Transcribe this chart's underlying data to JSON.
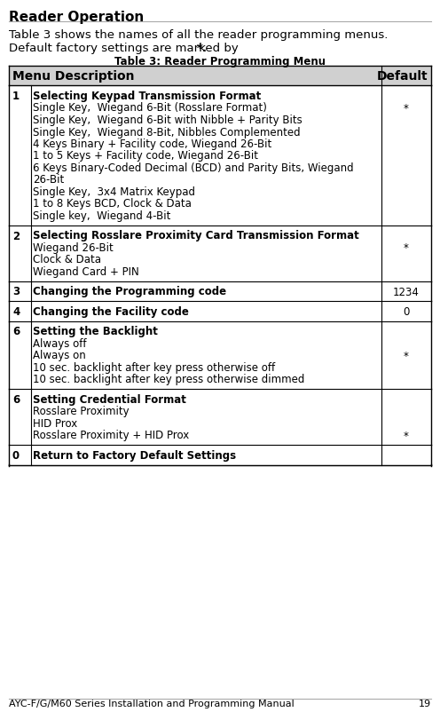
{
  "title": "Reader Operation",
  "subtitle_line1": "Table 3 shows the names of all the reader programming menus.",
  "subtitle_line2": "Default factory settings are marked by *.",
  "table_title": "Table 3: Reader Programming Menu",
  "header": [
    "Menu Description",
    "Default"
  ],
  "rows": [
    {
      "menu": "1",
      "description": "Selecting Keypad Transmission Format",
      "sub_items": [
        "Single Key,  Wiegand 6-Bit (Rosslare Format)",
        "Single Key,  Wiegand 6-Bit with Nibble + Parity Bits",
        "Single Key,  Wiegand 8-Bit, Nibbles Complemented",
        "4 Keys Binary + Facility code, Wiegand 26-Bit",
        "1 to 5 Keys + Facility code, Wiegand 26-Bit",
        "6 Keys Binary-Coded Decimal (BCD) and Parity Bits, Wiegand\n26-Bit",
        "Single Key,  3x4 Matrix Keypad",
        "1 to 8 Keys BCD, Clock & Data",
        "Single key,  Wiegand 4-Bit"
      ],
      "default": "*",
      "default_at_line": 1
    },
    {
      "menu": "2",
      "description": "Selecting Rosslare Proximity Card Transmission Format",
      "sub_items": [
        "Wiegand 26-Bit",
        "Clock & Data",
        "Wiegand Card + PIN"
      ],
      "default": "*",
      "default_at_line": 1
    },
    {
      "menu": "3",
      "description": "Changing the Programming code",
      "sub_items": [],
      "default": "1234",
      "default_at_line": 0
    },
    {
      "menu": "4",
      "description": "Changing the Facility code",
      "sub_items": [],
      "default": "0",
      "default_at_line": 0
    },
    {
      "menu": "6",
      "description": "Setting the Backlight",
      "sub_items": [
        "Always off",
        "Always on",
        "10 sec. backlight after key press otherwise off",
        "10 sec. backlight after key press otherwise dimmed"
      ],
      "default": "*",
      "default_at_line": 2
    },
    {
      "menu": "6",
      "description": "Setting Credential Format",
      "sub_items": [
        "Rosslare Proximity",
        "HID Prox",
        "Rosslare Proximity + HID Prox"
      ],
      "default": "*",
      "default_at_line": 3
    },
    {
      "menu": "0",
      "description": "Return to Factory Default Settings",
      "sub_items": [],
      "default": "",
      "default_at_line": 0
    }
  ],
  "footer": "AYC-F/G/M60 Series Installation and Programming Manual",
  "page": "19",
  "bg_color": "#ffffff",
  "header_bg": "#d0d0d0",
  "border_color": "#000000",
  "text_color": "#000000"
}
